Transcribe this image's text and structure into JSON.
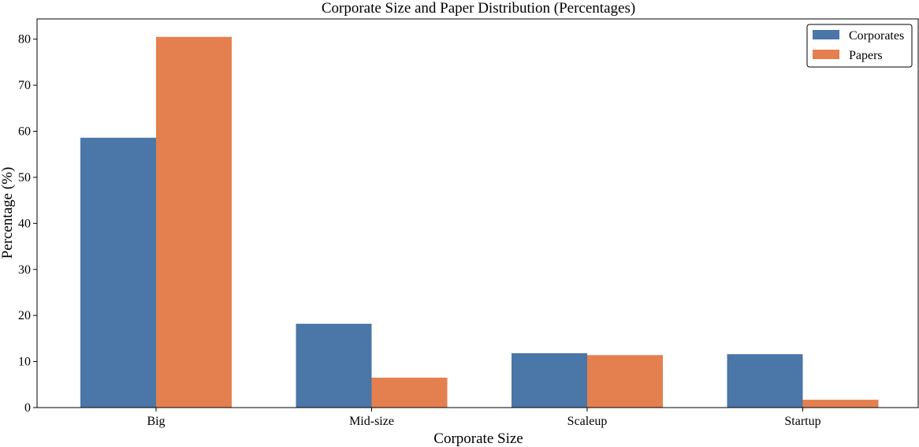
{
  "chart_data": {
    "type": "bar",
    "title": "Corporate Size and Paper Distribution (Percentages)",
    "xlabel": "Corporate Size",
    "ylabel": "Percentage (%)",
    "categories": [
      "Big",
      "Mid-size",
      "Scaleup",
      "Startup"
    ],
    "series": [
      {
        "name": "Corporates",
        "color": "#4a76a8",
        "values": [
          58.6,
          18.2,
          11.8,
          11.6
        ]
      },
      {
        "name": "Papers",
        "color": "#e4804f",
        "values": [
          80.5,
          6.5,
          11.4,
          1.7
        ]
      }
    ],
    "ylim": [
      0,
      84.4
    ],
    "yticks": [
      0,
      10,
      20,
      30,
      40,
      50,
      60,
      70,
      80
    ],
    "grid": false,
    "legend_position": "top-right"
  }
}
